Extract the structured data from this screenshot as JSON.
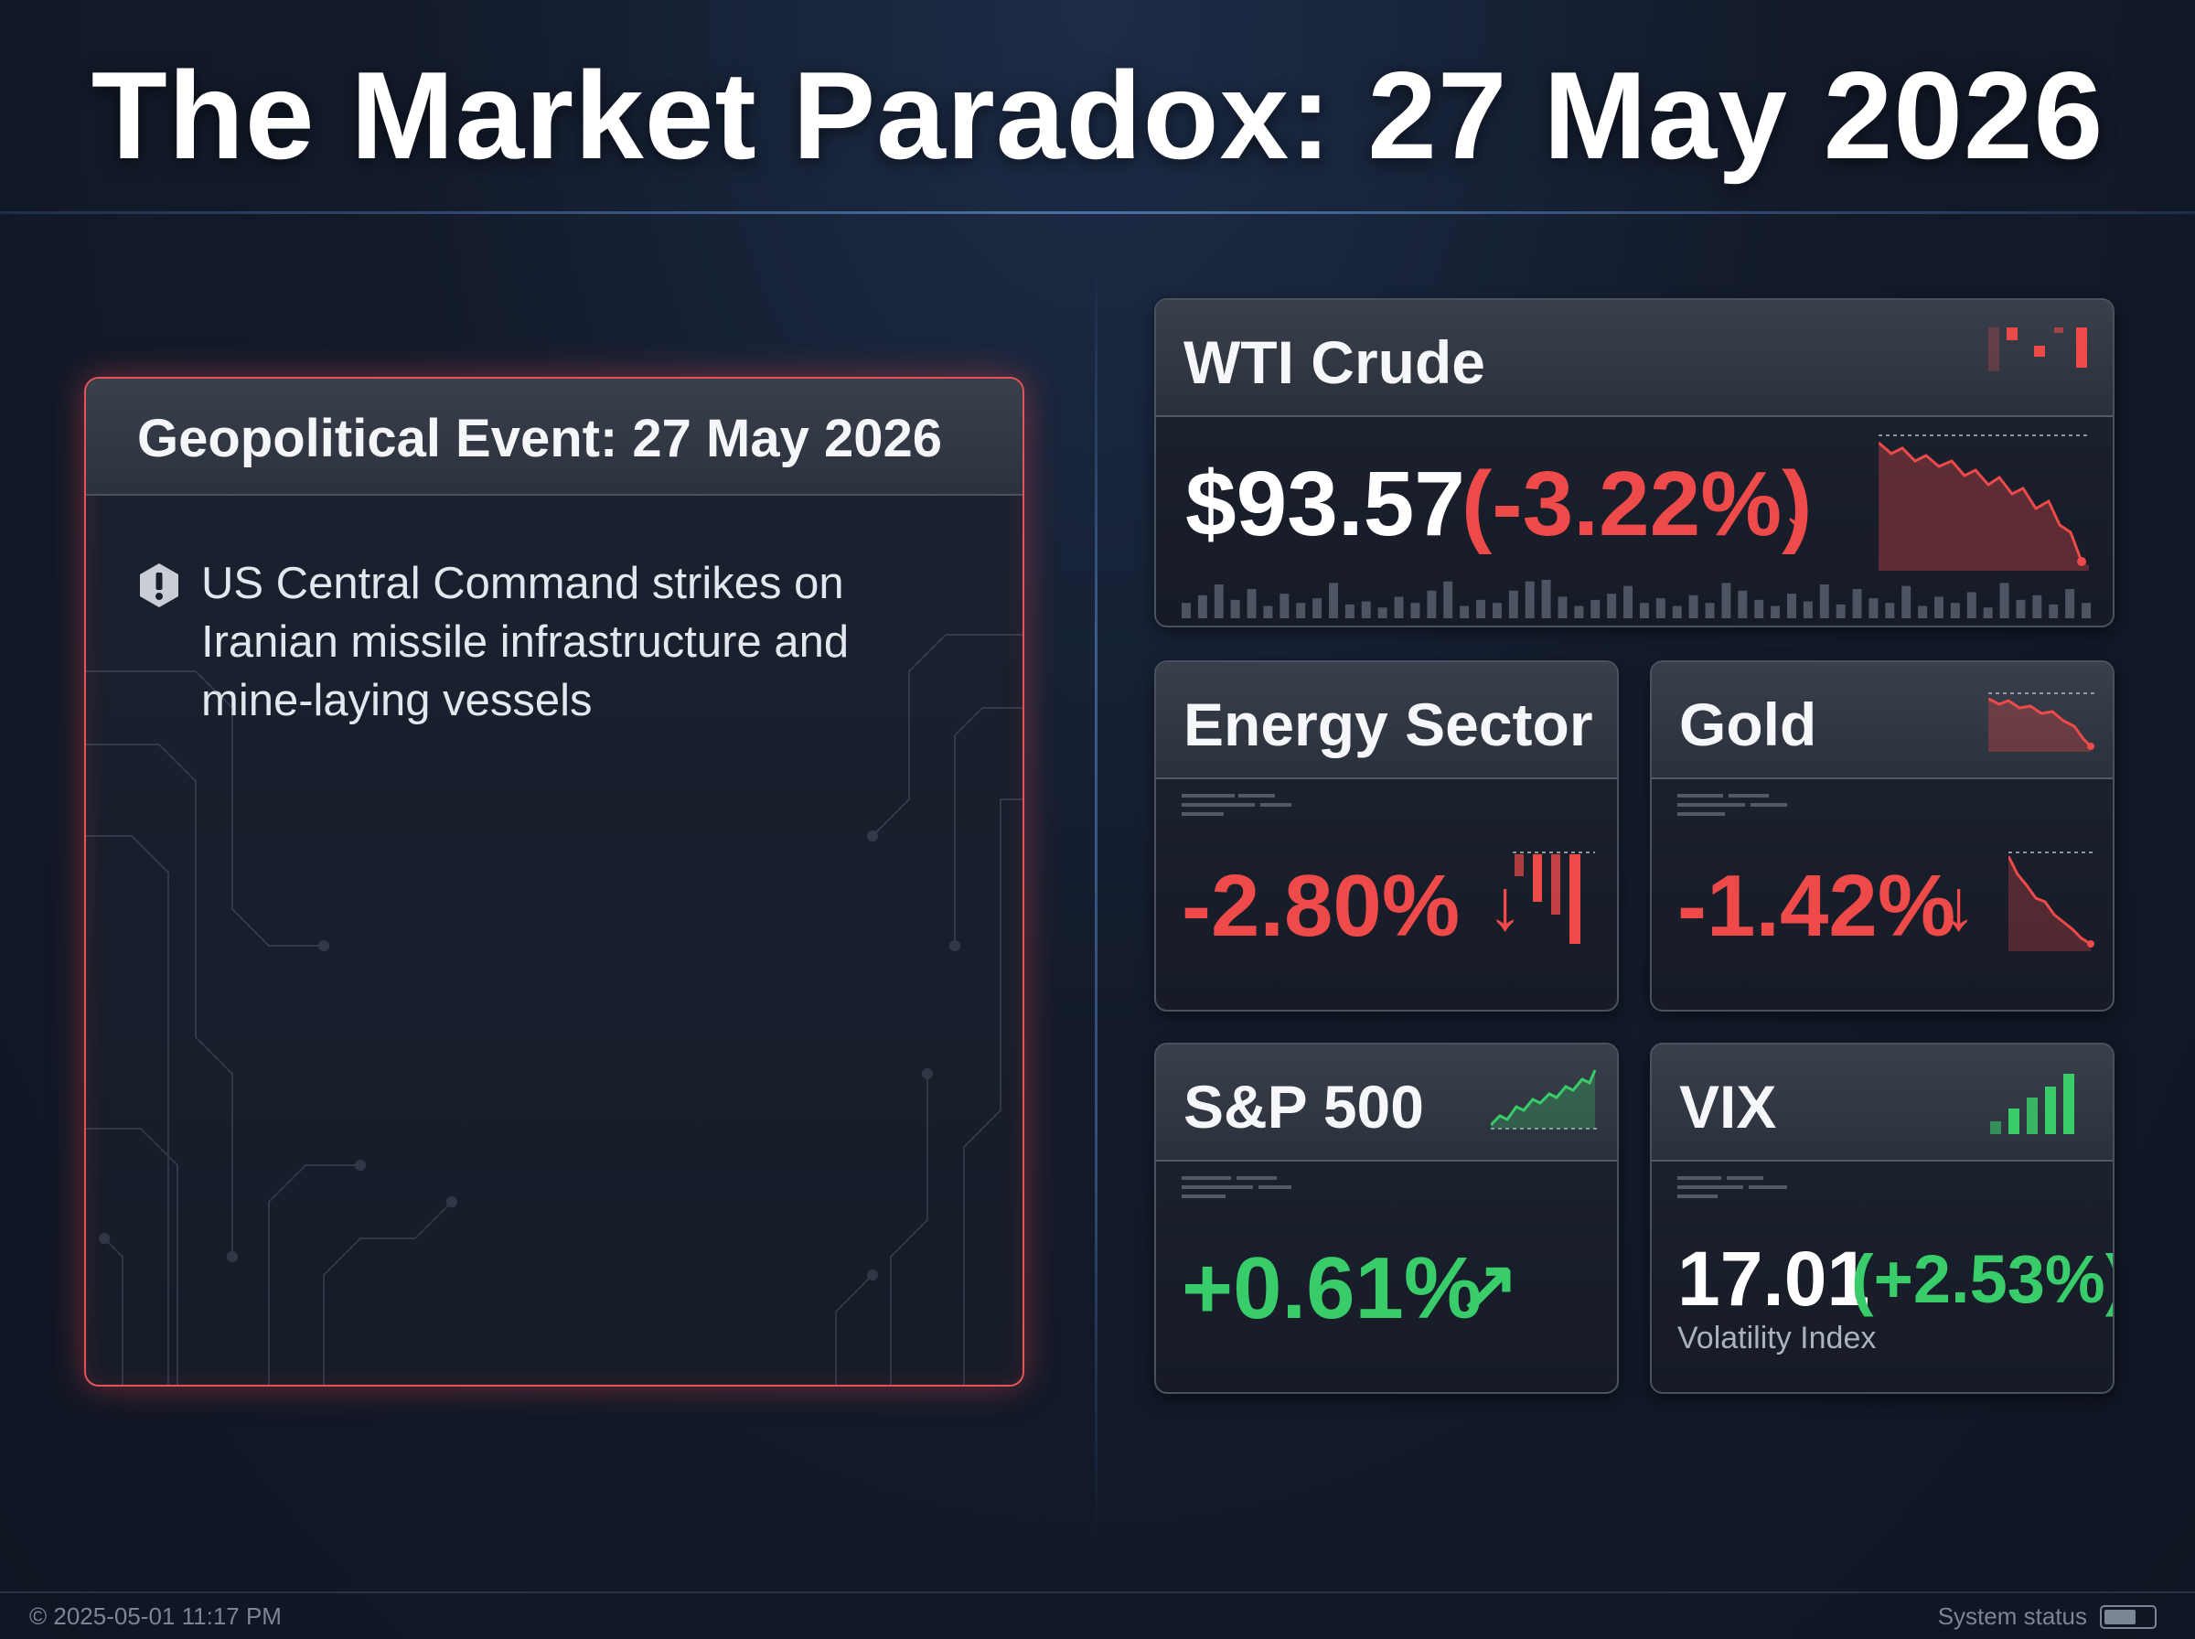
{
  "page": {
    "title": "The Market Paradox: 27 May 2026"
  },
  "event": {
    "title": "Geopolitical Event: 27 May 2026",
    "text": "US Central Command strikes on Iranian missile infrastructure and mine-laying vessels",
    "icon": "alert-icon"
  },
  "cards": {
    "wti": {
      "title": "WTI Crude",
      "price": "$93.57",
      "change": "(-3.22%)",
      "arrow": "↓",
      "trend_icon": "sparkline-down-icon"
    },
    "energy": {
      "title": "Energy Sector",
      "change": "-2.80%",
      "arrow": "↓",
      "trend_icon": "bars-down-icon"
    },
    "gold": {
      "title": "Gold",
      "change": "-1.42%",
      "arrow": "↓",
      "trend_icon": "sparkline-down-icon"
    },
    "sp500": {
      "title": "S&P 500",
      "change": "+0.61%",
      "arrow": "↗",
      "trend_icon": "sparkline-up-icon"
    },
    "vix": {
      "title": "VIX",
      "value": "17.01",
      "change": "(+2.53%)",
      "label": "Volatility Index",
      "trend_icon": "bars-up-icon"
    }
  },
  "colors": {
    "negative": "#ee4a4a",
    "positive": "#39cc6a",
    "event_border": "#e0545a"
  },
  "footer": {
    "timestamp": "© 2025-05-01 11:17 PM",
    "status_label": "System status",
    "status_icon": "battery-icon"
  }
}
